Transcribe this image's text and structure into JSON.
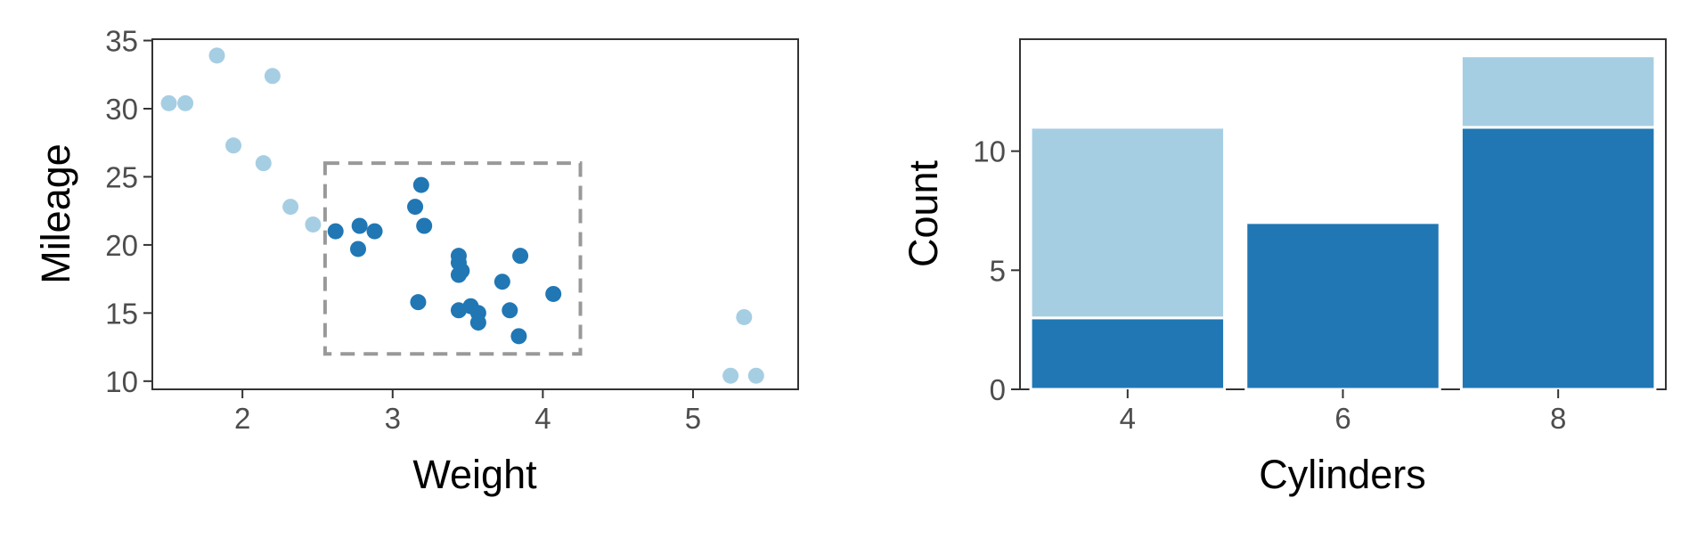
{
  "colors": {
    "selected": "#2077b4",
    "unselected": "#a6cee3",
    "brush": "#999999",
    "frame": "#333333"
  },
  "chart_data": [
    {
      "type": "scatter",
      "xlabel": "Weight",
      "ylabel": "Mileage",
      "xlim": [
        1.4,
        5.7
      ],
      "ylim": [
        9.4,
        35.1
      ],
      "xticks": [
        2,
        3,
        4,
        5
      ],
      "yticks": [
        10,
        15,
        20,
        25,
        30,
        35
      ],
      "brush": {
        "x": [
          2.55,
          4.25
        ],
        "y": [
          12.0,
          26.0
        ]
      },
      "series": [
        {
          "selected": false,
          "points": [
            [
              1.51,
              30.4
            ],
            [
              1.62,
              30.4
            ],
            [
              1.83,
              33.9
            ],
            [
              1.94,
              27.3
            ],
            [
              2.14,
              26.0
            ],
            [
              2.2,
              32.4
            ],
            [
              2.32,
              22.8
            ],
            [
              2.47,
              21.5
            ],
            [
              5.25,
              10.4
            ],
            [
              5.34,
              14.7
            ],
            [
              5.42,
              10.4
            ]
          ]
        },
        {
          "selected": true,
          "points": [
            [
              2.62,
              21.0
            ],
            [
              2.77,
              19.7
            ],
            [
              2.78,
              21.4
            ],
            [
              2.88,
              21.0
            ],
            [
              3.15,
              22.8
            ],
            [
              3.17,
              15.8
            ],
            [
              3.19,
              24.4
            ],
            [
              3.21,
              21.4
            ],
            [
              3.44,
              19.2
            ],
            [
              3.44,
              18.7
            ],
            [
              3.44,
              17.8
            ],
            [
              3.44,
              15.2
            ],
            [
              3.46,
              18.1
            ],
            [
              3.52,
              15.5
            ],
            [
              3.57,
              15.0
            ],
            [
              3.57,
              14.3
            ],
            [
              3.73,
              17.3
            ],
            [
              3.78,
              15.2
            ],
            [
              3.84,
              13.3
            ],
            [
              3.85,
              19.2
            ],
            [
              4.07,
              16.4
            ]
          ]
        }
      ]
    },
    {
      "type": "bar",
      "xlabel": "Cylinders",
      "ylabel": "Count",
      "categories": [
        "4",
        "6",
        "8"
      ],
      "ylim": [
        0,
        14.7
      ],
      "yticks": [
        0,
        5,
        10
      ],
      "series": [
        {
          "selected": true,
          "values": [
            3,
            7,
            11
          ]
        },
        {
          "selected": false,
          "values": [
            8,
            0,
            3
          ]
        }
      ]
    }
  ]
}
